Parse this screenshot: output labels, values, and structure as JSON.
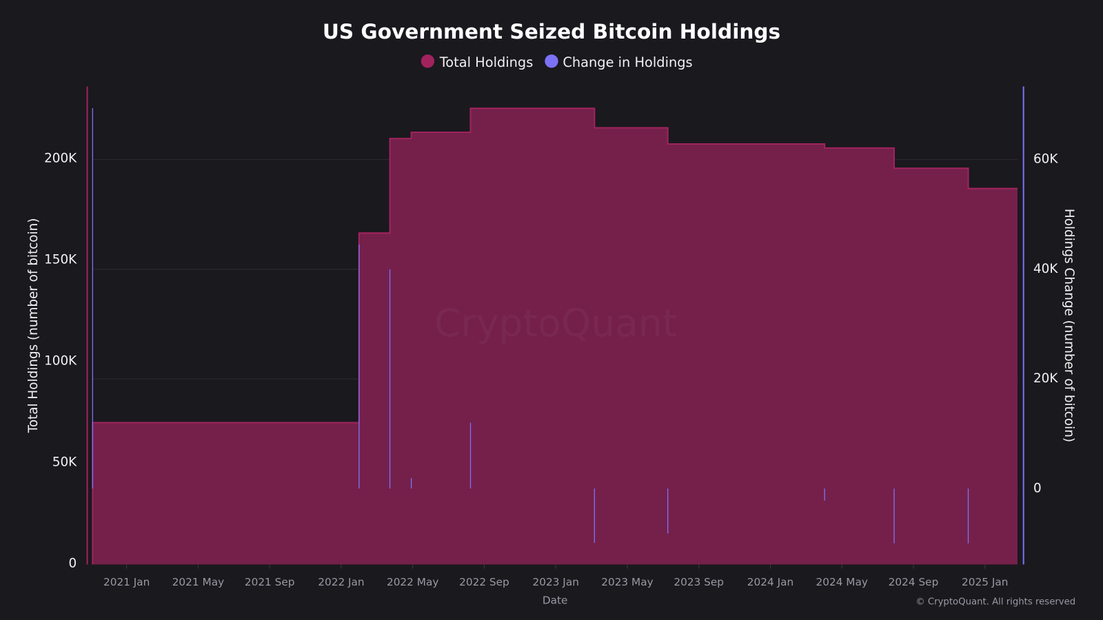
{
  "chart_data": {
    "type": "area",
    "title": "US Government Seized Bitcoin Holdings",
    "xlabel": "Date",
    "ylabel_left": "Total Holdings (number of bitcoin)",
    "ylabel_right": "Holdings Change (number of bitcoin)",
    "watermark": "CryptoQuant",
    "credit": "© CryptoQuant. All rights reserved",
    "legend_placement": "top-center",
    "grid": true,
    "x_ticks": [
      "2021 Jan",
      "2021 May",
      "2021 Sep",
      "2022 Jan",
      "2022 May",
      "2022 Sep",
      "2023 Jan",
      "2023 May",
      "2023 Sep",
      "2024 Jan",
      "2024 May",
      "2024 Sep",
      "2025 Jan"
    ],
    "x_range": [
      "2020-11-04",
      "2025-02-26"
    ],
    "y_left_ticks": [
      "0",
      "50K",
      "100K",
      "150K",
      "200K"
    ],
    "y_left_range": [
      0,
      239000
    ],
    "y_right_ticks": [
      "0",
      "20K",
      "40K",
      "60K"
    ],
    "y_right_range": [
      -13500,
      72900
    ],
    "series": [
      {
        "name": "Total Holdings",
        "type": "step-area",
        "axis": "left",
        "color": "#a1235e",
        "fill": "#74204a",
        "points": [
          {
            "x": "2020-11-04",
            "y": 69370
          },
          {
            "x": "2022-02-01",
            "y": 163000
          },
          {
            "x": "2022-03-23",
            "y": 209700
          },
          {
            "x": "2022-04-29",
            "y": 212800
          },
          {
            "x": "2022-08-08",
            "y": 224600
          },
          {
            "x": "2023-03-06",
            "y": 215000
          },
          {
            "x": "2023-07-09",
            "y": 207000
          },
          {
            "x": "2024-04-02",
            "y": 205000
          },
          {
            "x": "2024-07-29",
            "y": 195000
          },
          {
            "x": "2024-12-03",
            "y": 185000
          },
          {
            "x": "2025-02-26",
            "y": 185000
          }
        ]
      },
      {
        "name": "Change in Holdings",
        "type": "bar",
        "axis": "right",
        "color": "#7b72f5",
        "points": [
          {
            "x": "2020-11-04",
            "y": 69370
          },
          {
            "x": "2022-02-01",
            "y": 44500
          },
          {
            "x": "2022-03-23",
            "y": 40000
          },
          {
            "x": "2022-04-29",
            "y": 1900
          },
          {
            "x": "2022-08-08",
            "y": 12000
          },
          {
            "x": "2023-03-06",
            "y": -9900
          },
          {
            "x": "2023-07-09",
            "y": -8200
          },
          {
            "x": "2024-04-02",
            "y": -2200
          },
          {
            "x": "2024-07-29",
            "y": -10000
          },
          {
            "x": "2024-12-03",
            "y": -10000
          }
        ]
      }
    ]
  }
}
